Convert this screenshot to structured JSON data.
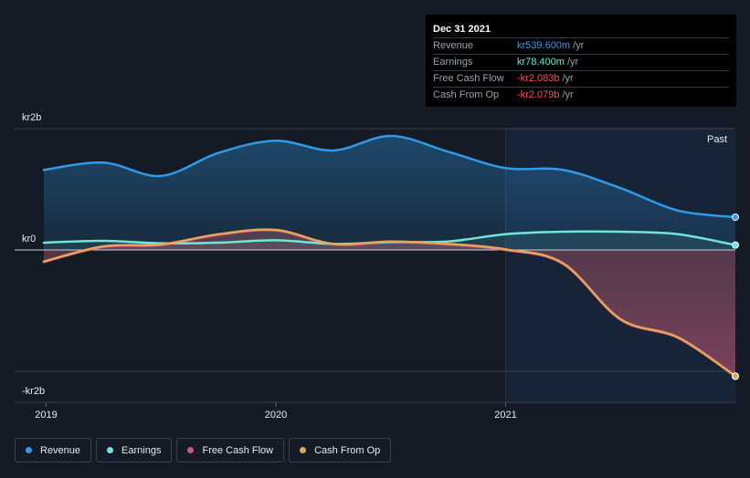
{
  "tooltip": {
    "date": "Dec 31 2021",
    "rows": [
      {
        "label": "Revenue",
        "value": "kr539.600m",
        "unit": "/yr",
        "color": "#2f9be8"
      },
      {
        "label": "Earnings",
        "value": "kr78.400m",
        "unit": "/yr",
        "color": "#6ee7d7"
      },
      {
        "label": "Free Cash Flow",
        "value": "-kr2.083b",
        "unit": "/yr",
        "color": "#ff4d4d"
      },
      {
        "label": "Cash From Op",
        "value": "-kr2.079b",
        "unit": "/yr",
        "color": "#ff4d4d"
      }
    ]
  },
  "past_label": "Past",
  "legend": [
    {
      "label": "Revenue",
      "color": "#2f9be8"
    },
    {
      "label": "Earnings",
      "color": "#6ee7d7"
    },
    {
      "label": "Free Cash Flow",
      "color": "#d6508a"
    },
    {
      "label": "Cash From Op",
      "color": "#e8a35a"
    }
  ],
  "chart_data": {
    "type": "area",
    "y_tick_labels": [
      "kr2b",
      "kr0",
      "-kr2b"
    ],
    "y_ticks": [
      2000,
      0,
      -2000
    ],
    "ylim": [
      -2500,
      2000
    ],
    "x_tick_labels": [
      "2019",
      "2020",
      "2021"
    ],
    "x_ticks": [
      2019.0,
      2020.0,
      2021.0
    ],
    "xlim": [
      2018.99,
      2022.0
    ],
    "grid": true,
    "series": [
      {
        "name": "Revenue",
        "color": "#2f9be8",
        "x": [
          2018.99,
          2019.25,
          2019.5,
          2019.75,
          2020.0,
          2020.25,
          2020.5,
          2020.75,
          2021.0,
          2021.25,
          2021.5,
          2021.75,
          2022.0
        ],
        "values": [
          1320,
          1440,
          1220,
          1600,
          1800,
          1640,
          1880,
          1620,
          1350,
          1320,
          1020,
          650,
          540
        ]
      },
      {
        "name": "Earnings",
        "color": "#6ee7d7",
        "x": [
          2018.99,
          2019.25,
          2019.5,
          2019.75,
          2020.0,
          2020.25,
          2020.5,
          2020.75,
          2021.0,
          2021.25,
          2021.5,
          2021.75,
          2022.0
        ],
        "values": [
          120,
          150,
          110,
          120,
          160,
          100,
          130,
          140,
          260,
          300,
          300,
          260,
          80
        ]
      },
      {
        "name": "Free Cash Flow",
        "color": "#d6508a",
        "x": [
          2018.99,
          2019.25,
          2019.5,
          2019.75,
          2020.0,
          2020.25,
          2020.5,
          2020.75,
          2021.0,
          2021.25,
          2021.5,
          2021.75,
          2022.0
        ],
        "values": [
          -200,
          50,
          80,
          250,
          320,
          90,
          130,
          90,
          0,
          -230,
          -1150,
          -1450,
          -2083
        ]
      },
      {
        "name": "Cash From Op",
        "color": "#e8a35a",
        "x": [
          2018.99,
          2019.25,
          2019.5,
          2019.75,
          2020.0,
          2020.25,
          2020.5,
          2020.75,
          2021.0,
          2021.25,
          2021.5,
          2021.75,
          2022.0
        ],
        "values": [
          -190,
          60,
          90,
          260,
          330,
          100,
          140,
          100,
          10,
          -220,
          -1140,
          -1440,
          -2079
        ]
      }
    ],
    "past_start_x": 2021.0
  }
}
